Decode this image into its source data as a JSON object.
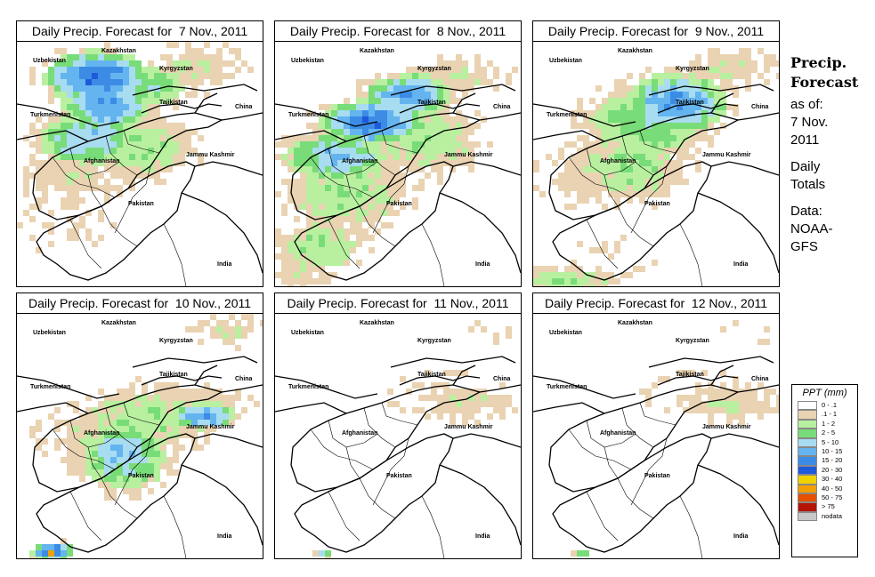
{
  "panels": [
    {
      "title": "Daily Precip. Forecast for  7 Nov., 2011",
      "intensity": "heavy-north"
    },
    {
      "title": "Daily Precip. Forecast for  8 Nov., 2011",
      "intensity": "heavy-center"
    },
    {
      "title": "Daily Precip. Forecast for  9 Nov., 2011",
      "intensity": "moderate"
    },
    {
      "title": "Daily Precip. Forecast for  10 Nov., 2011",
      "intensity": "moderate-south"
    },
    {
      "title": "Daily Precip. Forecast for  11 Nov., 2011",
      "intensity": "light"
    },
    {
      "title": "Daily Precip. Forecast for  12 Nov., 2011",
      "intensity": "light"
    }
  ],
  "map_labels": {
    "kazakhstan": "Kazakhstan",
    "uzbekistan": "Uzbekistan",
    "kyrgyzstan": "Kyrgyzstan",
    "tajikistan": "Tajikistan",
    "china": "China",
    "turkmenistan": "Turkmenistan",
    "afghanistan": "Afghanistan",
    "jammu_kashmir": "Jammu Kashmir",
    "pakistan": "Pakistan",
    "india": "India"
  },
  "side_panel": {
    "title_line1": "Precip.",
    "title_line2": "Forecast",
    "asof_line1": "as of:",
    "asof_line2": "7 Nov.",
    "asof_line3": "2011",
    "daily_line1": "Daily",
    "daily_line2": "Totals",
    "data_line1": "Data:",
    "data_line2": "NOAA-",
    "data_line3": "GFS"
  },
  "legend": {
    "title": "PPT (mm)",
    "items": [
      {
        "label": "0 - .1",
        "color": "#ffffff"
      },
      {
        "label": ".1 - 1",
        "color": "#ead3b2"
      },
      {
        "label": "1 - 2",
        "color": "#b8f0a0"
      },
      {
        "label": "2 - 5",
        "color": "#78dc78"
      },
      {
        "label": "5 - 10",
        "color": "#a8dcf0"
      },
      {
        "label": "10 - 15",
        "color": "#64b4f0"
      },
      {
        "label": "15 - 20",
        "color": "#3c8ce6"
      },
      {
        "label": "20 - 30",
        "color": "#1e5adc"
      },
      {
        "label": "30 - 40",
        "color": "#f0d200"
      },
      {
        "label": "40 - 50",
        "color": "#f0a000"
      },
      {
        "label": "50 - 75",
        "color": "#e65000"
      },
      {
        "label": "> 75",
        "color": "#b41400"
      },
      {
        "label": "nodata",
        "color": "#c8c8c8"
      }
    ]
  }
}
